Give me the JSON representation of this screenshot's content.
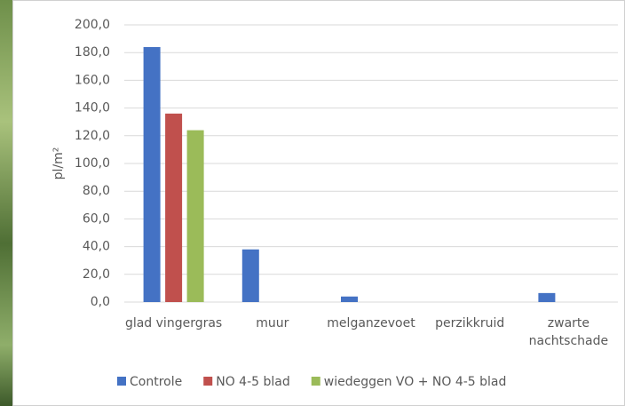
{
  "chart_data": {
    "type": "bar",
    "y_label": "pl/m²",
    "categories": [
      "glad vingergras",
      "muur",
      "melganzevoet",
      "perzikkruid",
      "zwarte nachtschade"
    ],
    "series": [
      {
        "name": "Controle",
        "color": "#4472c4",
        "values": [
          184,
          38,
          4,
          0,
          6.5
        ]
      },
      {
        "name": "NO 4-5 blad",
        "color": "#c0504d",
        "values": [
          136,
          0,
          0,
          0,
          0
        ]
      },
      {
        "name": "wiedeggen VO + NO 4-5 blad",
        "color": "#9bbb59",
        "values": [
          124,
          0,
          0,
          0,
          0
        ]
      }
    ],
    "ylim": [
      0,
      200
    ],
    "yticks": [
      {
        "value": 0,
        "label": "0,0"
      },
      {
        "value": 20,
        "label": "20,0"
      },
      {
        "value": 40,
        "label": "40,0"
      },
      {
        "value": 60,
        "label": "60,0"
      },
      {
        "value": 80,
        "label": "80,0"
      },
      {
        "value": 100,
        "label": "100,0"
      },
      {
        "value": 120,
        "label": "120,0"
      },
      {
        "value": 140,
        "label": "140,0"
      },
      {
        "value": 160,
        "label": "160,0"
      },
      {
        "value": 180,
        "label": "180,0"
      },
      {
        "value": 200,
        "label": "200,0"
      }
    ],
    "grid": true,
    "legend": "bottom"
  }
}
